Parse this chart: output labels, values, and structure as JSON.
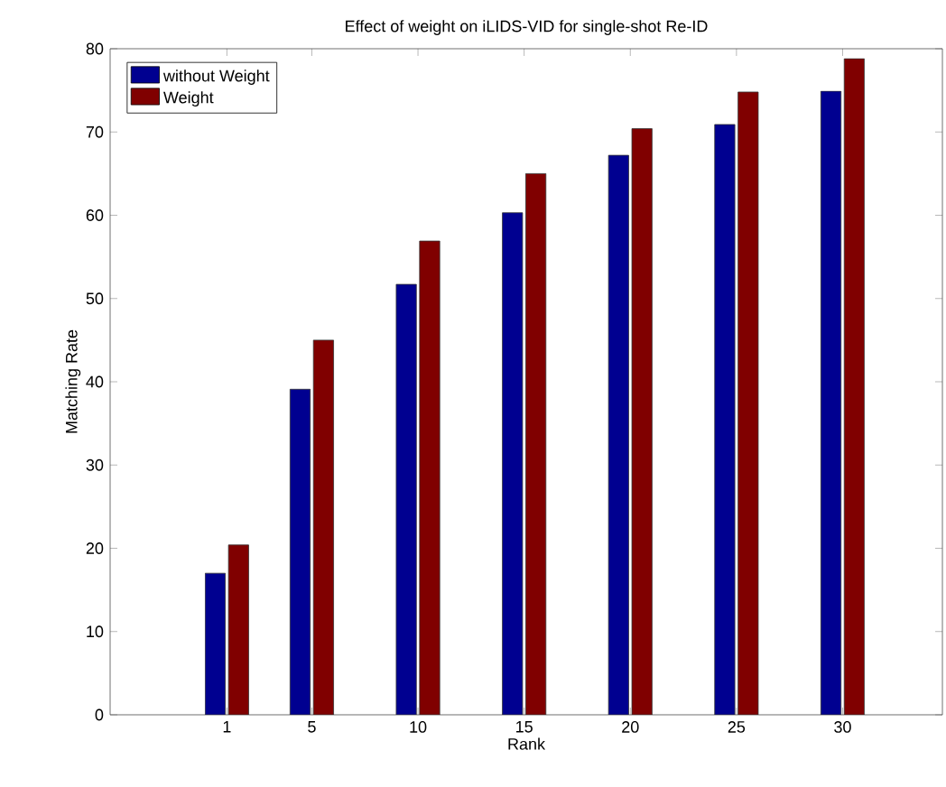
{
  "chart_data": {
    "type": "bar",
    "title": "Effect of weight on iLIDS-VID for single-shot Re-ID",
    "xlabel": "Rank",
    "ylabel": "Matching Rate",
    "x": [
      1,
      5,
      10,
      15,
      20,
      25,
      30
    ],
    "series": [
      {
        "name": "without Weight",
        "color": "#000090",
        "values": [
          17.0,
          39.1,
          51.7,
          60.3,
          67.2,
          70.9,
          74.9
        ]
      },
      {
        "name": "Weight",
        "color": "#800000",
        "values": [
          20.4,
          45.0,
          56.9,
          65.0,
          70.4,
          74.8,
          78.8
        ]
      }
    ],
    "xlim": [
      -4.5,
      34.7
    ],
    "ylim": [
      0,
      80
    ],
    "xticks": [
      1,
      5,
      10,
      15,
      20,
      25,
      30
    ],
    "yticks": [
      0,
      10,
      20,
      30,
      40,
      50,
      60,
      70,
      80
    ],
    "legend": "top left"
  }
}
